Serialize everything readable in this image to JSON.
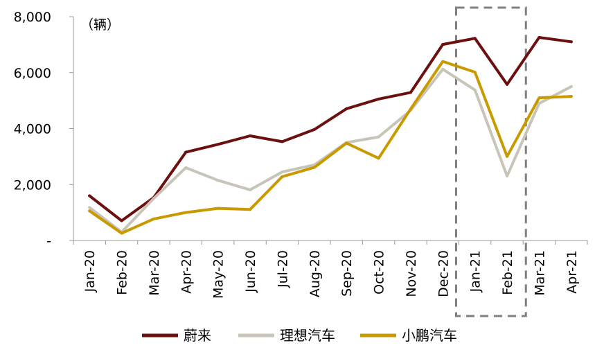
{
  "chart_data": {
    "type": "line",
    "unit_label": "（辆）",
    "categories": [
      "Jan-20",
      "Feb-20",
      "Mar-20",
      "Apr-20",
      "May-20",
      "Jun-20",
      "Jul-20",
      "Aug-20",
      "Sep-20",
      "Oct-20",
      "Nov-20",
      "Dec-20",
      "Jan-21",
      "Feb-21",
      "Mar-21",
      "Apr-21"
    ],
    "y_ticks": [
      {
        "value": 0,
        "label": "-"
      },
      {
        "value": 2000,
        "label": "2,000"
      },
      {
        "value": 4000,
        "label": "4,000"
      },
      {
        "value": 6000,
        "label": "6,000"
      },
      {
        "value": 8000,
        "label": "8,000"
      }
    ],
    "ylim": [
      0,
      8000
    ],
    "grid": false,
    "legend_position": "bottom",
    "highlight_box": {
      "from": "Jan-21",
      "to": "Feb-21",
      "style": "dashed",
      "color": "#808080"
    },
    "series": [
      {
        "name": "蔚来",
        "color": "#6b0f0f",
        "values": [
          1598,
          707,
          1533,
          3155,
          3436,
          3740,
          3533,
          3965,
          4708,
          5055,
          5291,
          7007,
          7225,
          5578,
          7257,
          7102
        ]
      },
      {
        "name": "理想汽车",
        "color": "#c8c5b8",
        "values": [
          1180,
          300,
          1500,
          2600,
          2150,
          1810,
          2450,
          2700,
          3500,
          3700,
          4650,
          6120,
          5380,
          2300,
          4900,
          5500
        ]
      },
      {
        "name": "小鹏汽车",
        "color": "#c99a00",
        "values": [
          1057,
          260,
          770,
          1000,
          1150,
          1110,
          2280,
          2610,
          3480,
          2940,
          4700,
          6400,
          6015,
          3005,
          5100,
          5150
        ]
      }
    ]
  }
}
